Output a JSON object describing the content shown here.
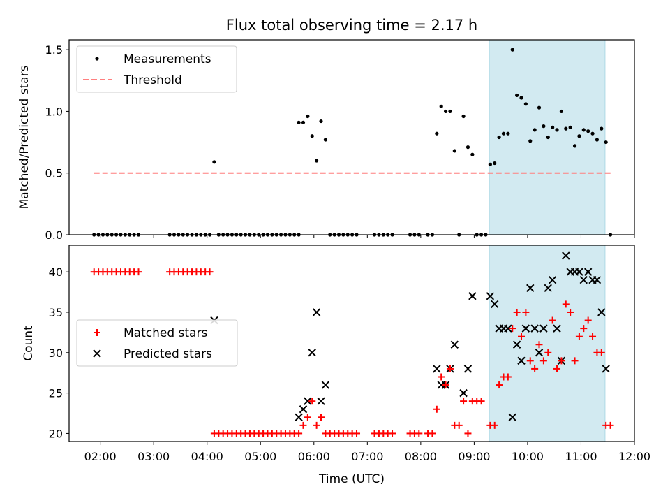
{
  "title": "Flux total observing time = 2.17 h",
  "xlabel": "Time (UTC)",
  "x_ticks": [
    "02:00",
    "03:00",
    "04:00",
    "05:00",
    "06:00",
    "07:00",
    "08:00",
    "09:00",
    "10:00",
    "11:00",
    "12:00"
  ],
  "colors": {
    "measurement": "#000000",
    "threshold": "#ff7f7f",
    "matched": "#ff0000",
    "predicted": "#000000",
    "shade": "#add8e6"
  },
  "chart_data": [
    {
      "type": "scatter",
      "ylabel": "Matched/Predicted stars",
      "xlim": [
        "01:25",
        "12:00"
      ],
      "ylim": [
        0,
        1.58
      ],
      "y_ticks": [
        "0.0",
        "0.5",
        "1.0",
        "1.5"
      ],
      "y_tick_values": [
        0,
        0.5,
        1.0,
        1.5
      ],
      "legend": {
        "placement": "top-left",
        "entries": [
          "Measurements",
          "Threshold"
        ]
      },
      "highlight_span": [
        "09:17",
        "11:27"
      ],
      "threshold": {
        "value": 0.5,
        "x": [
          "01:53",
          "11:35"
        ]
      },
      "series": [
        {
          "name": "Measurements",
          "points": [
            [
              "01:53",
              0
            ],
            [
              "01:58",
              0
            ],
            [
              "02:03",
              0
            ],
            [
              "02:08",
              0
            ],
            [
              "02:13",
              0
            ],
            [
              "02:18",
              0
            ],
            [
              "02:23",
              0
            ],
            [
              "02:28",
              0
            ],
            [
              "02:33",
              0
            ],
            [
              "02:38",
              0
            ],
            [
              "02:43",
              0
            ],
            [
              "03:18",
              0
            ],
            [
              "03:23",
              0
            ],
            [
              "03:28",
              0
            ],
            [
              "03:33",
              0
            ],
            [
              "03:38",
              0
            ],
            [
              "03:43",
              0
            ],
            [
              "03:48",
              0
            ],
            [
              "03:53",
              0
            ],
            [
              "03:58",
              0
            ],
            [
              "04:03",
              0
            ],
            [
              "04:08",
              0.59
            ],
            [
              "04:13",
              0
            ],
            [
              "04:18",
              0
            ],
            [
              "04:23",
              0
            ],
            [
              "04:28",
              0
            ],
            [
              "04:33",
              0
            ],
            [
              "04:38",
              0
            ],
            [
              "04:43",
              0
            ],
            [
              "04:48",
              0
            ],
            [
              "04:53",
              0
            ],
            [
              "04:58",
              0
            ],
            [
              "05:03",
              0
            ],
            [
              "05:08",
              0
            ],
            [
              "05:13",
              0
            ],
            [
              "05:18",
              0
            ],
            [
              "05:23",
              0
            ],
            [
              "05:28",
              0
            ],
            [
              "05:33",
              0
            ],
            [
              "05:38",
              0
            ],
            [
              "05:43",
              0
            ],
            [
              "05:43",
              0.91
            ],
            [
              "05:48",
              0.91
            ],
            [
              "05:53",
              0.96
            ],
            [
              "05:58",
              0.8
            ],
            [
              "06:03",
              0.6
            ],
            [
              "06:08",
              0.92
            ],
            [
              "06:13",
              0.77
            ],
            [
              "06:18",
              0
            ],
            [
              "06:23",
              0
            ],
            [
              "06:28",
              0
            ],
            [
              "06:33",
              0
            ],
            [
              "06:38",
              0
            ],
            [
              "06:43",
              0
            ],
            [
              "06:48",
              0
            ],
            [
              "07:08",
              0
            ],
            [
              "07:13",
              0
            ],
            [
              "07:18",
              0
            ],
            [
              "07:23",
              0
            ],
            [
              "07:28",
              0
            ],
            [
              "07:48",
              0
            ],
            [
              "07:53",
              0
            ],
            [
              "07:58",
              0
            ],
            [
              "08:08",
              0
            ],
            [
              "08:13",
              0
            ],
            [
              "08:18",
              0.82
            ],
            [
              "08:23",
              1.04
            ],
            [
              "08:28",
              1.0
            ],
            [
              "08:33",
              1.0
            ],
            [
              "08:38",
              0.68
            ],
            [
              "08:43",
              0
            ],
            [
              "08:48",
              0.96
            ],
            [
              "08:53",
              0.71
            ],
            [
              "08:58",
              0.65
            ],
            [
              "09:03",
              0
            ],
            [
              "09:08",
              0
            ],
            [
              "09:13",
              0
            ],
            [
              "09:18",
              0.57
            ],
            [
              "09:23",
              0.58
            ],
            [
              "09:28",
              0.79
            ],
            [
              "09:33",
              0.82
            ],
            [
              "09:38",
              0.82
            ],
            [
              "09:43",
              1.5
            ],
            [
              "09:48",
              1.13
            ],
            [
              "09:53",
              1.11
            ],
            [
              "09:58",
              1.06
            ],
            [
              "10:03",
              0.76
            ],
            [
              "10:08",
              0.85
            ],
            [
              "10:13",
              1.03
            ],
            [
              "10:18",
              0.88
            ],
            [
              "10:23",
              0.79
            ],
            [
              "10:28",
              0.87
            ],
            [
              "10:33",
              0.85
            ],
            [
              "10:38",
              1.0
            ],
            [
              "10:43",
              0.86
            ],
            [
              "10:48",
              0.87
            ],
            [
              "10:53",
              0.72
            ],
            [
              "10:58",
              0.8
            ],
            [
              "11:03",
              0.85
            ],
            [
              "11:08",
              0.84
            ],
            [
              "11:13",
              0.82
            ],
            [
              "11:18",
              0.77
            ],
            [
              "11:23",
              0.86
            ],
            [
              "11:28",
              0.75
            ],
            [
              "11:33",
              0
            ]
          ]
        },
        {
          "name": "Threshold",
          "values": [
            0.5
          ]
        }
      ]
    },
    {
      "type": "scatter",
      "ylabel": "Count",
      "xlim": [
        "01:25",
        "12:00"
      ],
      "ylim": [
        19,
        43.3
      ],
      "y_ticks": [
        "20",
        "25",
        "30",
        "35",
        "40"
      ],
      "y_tick_values": [
        20,
        25,
        30,
        35,
        40
      ],
      "legend": {
        "placement": "center-left",
        "entries": [
          "Matched stars",
          "Predicted stars"
        ]
      },
      "highlight_span": [
        "09:17",
        "11:27"
      ],
      "series": [
        {
          "name": "Matched stars",
          "points": [
            [
              "01:53",
              40
            ],
            [
              "01:58",
              40
            ],
            [
              "02:03",
              40
            ],
            [
              "02:08",
              40
            ],
            [
              "02:13",
              40
            ],
            [
              "02:18",
              40
            ],
            [
              "02:23",
              40
            ],
            [
              "02:28",
              40
            ],
            [
              "02:33",
              40
            ],
            [
              "02:38",
              40
            ],
            [
              "02:43",
              40
            ],
            [
              "03:18",
              40
            ],
            [
              "03:23",
              40
            ],
            [
              "03:28",
              40
            ],
            [
              "03:33",
              40
            ],
            [
              "03:38",
              40
            ],
            [
              "03:43",
              40
            ],
            [
              "03:48",
              40
            ],
            [
              "03:53",
              40
            ],
            [
              "03:58",
              40
            ],
            [
              "04:03",
              40
            ],
            [
              "04:08",
              20
            ],
            [
              "04:13",
              20
            ],
            [
              "04:18",
              20
            ],
            [
              "04:23",
              20
            ],
            [
              "04:28",
              20
            ],
            [
              "04:33",
              20
            ],
            [
              "04:38",
              20
            ],
            [
              "04:43",
              20
            ],
            [
              "04:48",
              20
            ],
            [
              "04:53",
              20
            ],
            [
              "04:58",
              20
            ],
            [
              "05:03",
              20
            ],
            [
              "05:08",
              20
            ],
            [
              "05:13",
              20
            ],
            [
              "05:18",
              20
            ],
            [
              "05:23",
              20
            ],
            [
              "05:28",
              20
            ],
            [
              "05:33",
              20
            ],
            [
              "05:38",
              20
            ],
            [
              "05:43",
              20
            ],
            [
              "05:48",
              21
            ],
            [
              "05:53",
              22
            ],
            [
              "05:58",
              24
            ],
            [
              "06:03",
              21
            ],
            [
              "06:08",
              22
            ],
            [
              "06:13",
              20
            ],
            [
              "06:18",
              20
            ],
            [
              "06:23",
              20
            ],
            [
              "06:28",
              20
            ],
            [
              "06:33",
              20
            ],
            [
              "06:38",
              20
            ],
            [
              "06:43",
              20
            ],
            [
              "06:48",
              20
            ],
            [
              "07:08",
              20
            ],
            [
              "07:13",
              20
            ],
            [
              "07:18",
              20
            ],
            [
              "07:23",
              20
            ],
            [
              "07:28",
              20
            ],
            [
              "07:48",
              20
            ],
            [
              "07:53",
              20
            ],
            [
              "07:58",
              20
            ],
            [
              "08:08",
              20
            ],
            [
              "08:13",
              20
            ],
            [
              "08:18",
              23
            ],
            [
              "08:23",
              27
            ],
            [
              "08:28",
              26
            ],
            [
              "08:33",
              28
            ],
            [
              "08:38",
              21
            ],
            [
              "08:43",
              21
            ],
            [
              "08:48",
              24
            ],
            [
              "08:53",
              20
            ],
            [
              "08:58",
              24
            ],
            [
              "09:03",
              24
            ],
            [
              "09:08",
              24
            ],
            [
              "09:18",
              21
            ],
            [
              "09:23",
              21
            ],
            [
              "09:28",
              26
            ],
            [
              "09:33",
              27
            ],
            [
              "09:38",
              27
            ],
            [
              "09:43",
              33
            ],
            [
              "09:48",
              35
            ],
            [
              "09:53",
              32
            ],
            [
              "09:58",
              35
            ],
            [
              "10:03",
              29
            ],
            [
              "10:08",
              28
            ],
            [
              "10:13",
              31
            ],
            [
              "10:18",
              29
            ],
            [
              "10:23",
              30
            ],
            [
              "10:28",
              34
            ],
            [
              "10:33",
              28
            ],
            [
              "10:38",
              29
            ],
            [
              "10:43",
              36
            ],
            [
              "10:48",
              35
            ],
            [
              "10:53",
              29
            ],
            [
              "10:58",
              32
            ],
            [
              "11:03",
              33
            ],
            [
              "11:08",
              34
            ],
            [
              "11:13",
              32
            ],
            [
              "11:18",
              30
            ],
            [
              "11:23",
              30
            ],
            [
              "11:28",
              21
            ],
            [
              "11:33",
              21
            ]
          ]
        },
        {
          "name": "Predicted stars",
          "points": [
            [
              "04:08",
              34
            ],
            [
              "05:43",
              22
            ],
            [
              "05:48",
              23
            ],
            [
              "05:53",
              24
            ],
            [
              "05:58",
              30
            ],
            [
              "06:03",
              35
            ],
            [
              "06:08",
              24
            ],
            [
              "06:13",
              26
            ],
            [
              "08:18",
              28
            ],
            [
              "08:23",
              26
            ],
            [
              "08:28",
              26
            ],
            [
              "08:33",
              28
            ],
            [
              "08:38",
              31
            ],
            [
              "08:48",
              25
            ],
            [
              "08:53",
              28
            ],
            [
              "08:58",
              37
            ],
            [
              "09:18",
              37
            ],
            [
              "09:23",
              36
            ],
            [
              "09:28",
              33
            ],
            [
              "09:33",
              33
            ],
            [
              "09:38",
              33
            ],
            [
              "09:43",
              22
            ],
            [
              "09:48",
              31
            ],
            [
              "09:53",
              29
            ],
            [
              "09:58",
              33
            ],
            [
              "10:03",
              38
            ],
            [
              "10:08",
              33
            ],
            [
              "10:13",
              30
            ],
            [
              "10:18",
              33
            ],
            [
              "10:23",
              38
            ],
            [
              "10:28",
              39
            ],
            [
              "10:33",
              33
            ],
            [
              "10:38",
              29
            ],
            [
              "10:43",
              42
            ],
            [
              "10:48",
              40
            ],
            [
              "10:53",
              40
            ],
            [
              "10:58",
              40
            ],
            [
              "11:03",
              39
            ],
            [
              "11:08",
              40
            ],
            [
              "11:13",
              39
            ],
            [
              "11:18",
              39
            ],
            [
              "11:23",
              35
            ],
            [
              "11:28",
              28
            ]
          ]
        }
      ]
    }
  ]
}
